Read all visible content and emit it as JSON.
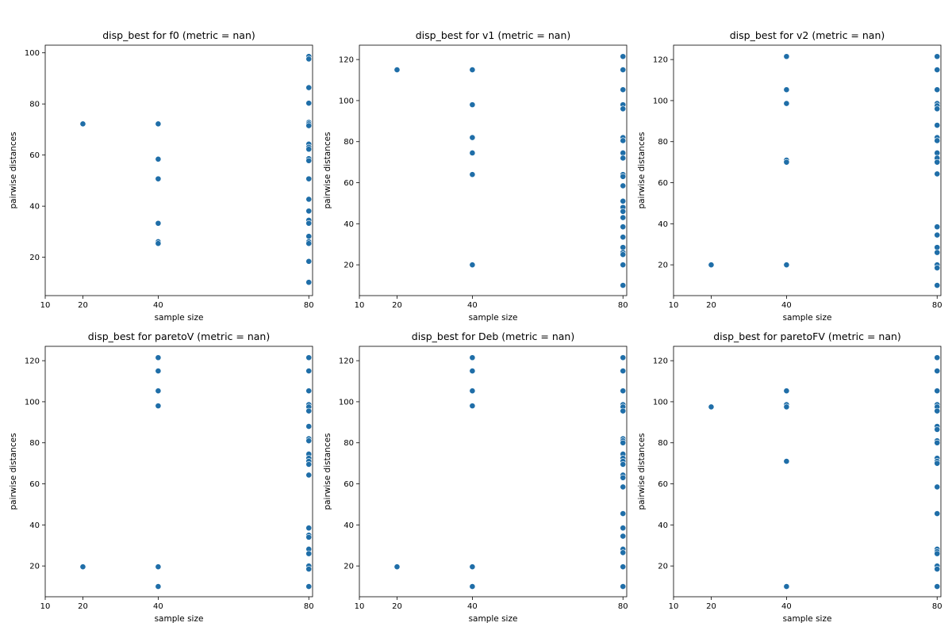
{
  "figure": {
    "width": 1200,
    "height": 800
  },
  "style": {
    "point_color": "#1f6ea8",
    "edge_color": "#ffffff"
  },
  "chart_data": [
    {
      "type": "scatter",
      "title": "disp_best for f0 (metric = nan)",
      "xlabel": "sample size",
      "ylabel": "pairwise distances",
      "xlim": [
        10,
        81
      ],
      "ylim": [
        5,
        103
      ],
      "xticks": [
        10,
        20,
        40,
        80
      ],
      "yticks": [
        20,
        40,
        60,
        80,
        100
      ],
      "points": [
        [
          20,
          72.2
        ],
        [
          40,
          72.2
        ],
        [
          40,
          58.4
        ],
        [
          40,
          50.7
        ],
        [
          40,
          33.3
        ],
        [
          40,
          26.1
        ],
        [
          40,
          25.4
        ],
        [
          80,
          98.6
        ],
        [
          80,
          97.6
        ],
        [
          80,
          86.4
        ],
        [
          80,
          80.3
        ],
        [
          80,
          72.8
        ],
        [
          80,
          72.2
        ],
        [
          80,
          71.5
        ],
        [
          80,
          64.3
        ],
        [
          80,
          63.1
        ],
        [
          80,
          62.3
        ],
        [
          80,
          58.6
        ],
        [
          80,
          57.8
        ],
        [
          80,
          50.7
        ],
        [
          80,
          42.7
        ],
        [
          80,
          38.1
        ],
        [
          80,
          34.5
        ],
        [
          80,
          33.3
        ],
        [
          80,
          28.2
        ],
        [
          80,
          26.1
        ],
        [
          80,
          25.4
        ],
        [
          80,
          18.4
        ],
        [
          80,
          10.2
        ]
      ]
    },
    {
      "type": "scatter",
      "title": "disp_best for v1 (metric = nan)",
      "xlabel": "sample size",
      "ylabel": "pairwise distances",
      "xlim": [
        10,
        81
      ],
      "ylim": [
        5,
        127
      ],
      "xticks": [
        10,
        20,
        40,
        80
      ],
      "yticks": [
        20,
        40,
        60,
        80,
        100,
        120
      ],
      "points": [
        [
          20,
          115
        ],
        [
          40,
          115
        ],
        [
          40,
          98
        ],
        [
          40,
          82
        ],
        [
          40,
          74.5
        ],
        [
          40,
          64
        ],
        [
          40,
          20
        ],
        [
          80,
          121.5
        ],
        [
          80,
          115
        ],
        [
          80,
          105.3
        ],
        [
          80,
          98
        ],
        [
          80,
          96
        ],
        [
          80,
          82
        ],
        [
          80,
          80.5
        ],
        [
          80,
          74.5
        ],
        [
          80,
          72
        ],
        [
          80,
          64
        ],
        [
          80,
          63
        ],
        [
          80,
          58.5
        ],
        [
          80,
          51
        ],
        [
          80,
          48
        ],
        [
          80,
          46
        ],
        [
          80,
          43
        ],
        [
          80,
          38.5
        ],
        [
          80,
          33.5
        ],
        [
          80,
          28.5
        ],
        [
          80,
          26
        ],
        [
          80,
          25
        ],
        [
          80,
          20
        ],
        [
          80,
          10
        ]
      ]
    },
    {
      "type": "scatter",
      "title": "disp_best for v2 (metric = nan)",
      "xlabel": "sample size",
      "ylabel": "pairwise distances",
      "xlim": [
        10,
        81
      ],
      "ylim": [
        5,
        127
      ],
      "xticks": [
        10,
        20,
        40,
        80
      ],
      "yticks": [
        20,
        40,
        60,
        80,
        100,
        120
      ],
      "points": [
        [
          20,
          20
        ],
        [
          40,
          121.5
        ],
        [
          40,
          105.3
        ],
        [
          40,
          98.6
        ],
        [
          40,
          71
        ],
        [
          40,
          70
        ],
        [
          40,
          20
        ],
        [
          80,
          121.5
        ],
        [
          80,
          115
        ],
        [
          80,
          105.3
        ],
        [
          80,
          98.6
        ],
        [
          80,
          97.5
        ],
        [
          80,
          96
        ],
        [
          80,
          88
        ],
        [
          80,
          82
        ],
        [
          80,
          80.5
        ],
        [
          80,
          74.5
        ],
        [
          80,
          72
        ],
        [
          80,
          70
        ],
        [
          80,
          64.3
        ],
        [
          80,
          38.5
        ],
        [
          80,
          34.5
        ],
        [
          80,
          28.5
        ],
        [
          80,
          26
        ],
        [
          80,
          20
        ],
        [
          80,
          18.5
        ],
        [
          80,
          10
        ]
      ]
    },
    {
      "type": "scatter",
      "title": "disp_best for paretoV (metric = nan)",
      "xlabel": "sample size",
      "ylabel": "pairwise distances",
      "xlim": [
        10,
        81
      ],
      "ylim": [
        5,
        127
      ],
      "xticks": [
        10,
        20,
        40,
        80
      ],
      "yticks": [
        20,
        40,
        60,
        80,
        100,
        120
      ],
      "points": [
        [
          20,
          19.6
        ],
        [
          40,
          121.5
        ],
        [
          40,
          115
        ],
        [
          40,
          105.3
        ],
        [
          40,
          98
        ],
        [
          40,
          19.6
        ],
        [
          40,
          10
        ],
        [
          80,
          121.5
        ],
        [
          80,
          115
        ],
        [
          80,
          105.3
        ],
        [
          80,
          98.6
        ],
        [
          80,
          97.5
        ],
        [
          80,
          95.5
        ],
        [
          80,
          88
        ],
        [
          80,
          82
        ],
        [
          80,
          81
        ],
        [
          80,
          74.5
        ],
        [
          80,
          72.5
        ],
        [
          80,
          71
        ],
        [
          80,
          69.5
        ],
        [
          80,
          64.3
        ],
        [
          80,
          38.5
        ],
        [
          80,
          35
        ],
        [
          80,
          34
        ],
        [
          80,
          28.2
        ],
        [
          80,
          26
        ],
        [
          80,
          20
        ],
        [
          80,
          18.5
        ],
        [
          80,
          10
        ]
      ]
    },
    {
      "type": "scatter",
      "title": "disp_best for Deb (metric = nan)",
      "xlabel": "sample size",
      "ylabel": "pairwise distances",
      "xlim": [
        10,
        81
      ],
      "ylim": [
        5,
        127
      ],
      "xticks": [
        10,
        20,
        40,
        80
      ],
      "yticks": [
        20,
        40,
        60,
        80,
        100,
        120
      ],
      "points": [
        [
          20,
          19.6
        ],
        [
          40,
          121.5
        ],
        [
          40,
          115
        ],
        [
          40,
          105.3
        ],
        [
          40,
          98
        ],
        [
          40,
          19.6
        ],
        [
          40,
          10
        ],
        [
          80,
          121.5
        ],
        [
          80,
          115
        ],
        [
          80,
          105.3
        ],
        [
          80,
          98.6
        ],
        [
          80,
          97.5
        ],
        [
          80,
          95.5
        ],
        [
          80,
          82
        ],
        [
          80,
          81
        ],
        [
          80,
          80
        ],
        [
          80,
          74.5
        ],
        [
          80,
          72.5
        ],
        [
          80,
          71
        ],
        [
          80,
          69.5
        ],
        [
          80,
          64.3
        ],
        [
          80,
          63
        ],
        [
          80,
          58.5
        ],
        [
          80,
          45.5
        ],
        [
          80,
          38.5
        ],
        [
          80,
          34.5
        ],
        [
          80,
          28.2
        ],
        [
          80,
          26.5
        ],
        [
          80,
          19.6
        ],
        [
          80,
          10
        ]
      ]
    },
    {
      "type": "scatter",
      "title": "disp_best for paretoFV (metric = nan)",
      "xlabel": "sample size",
      "ylabel": "pairwise distances",
      "xlim": [
        10,
        81
      ],
      "ylim": [
        5,
        127
      ],
      "xticks": [
        10,
        20,
        40,
        80
      ],
      "yticks": [
        20,
        40,
        60,
        80,
        100,
        120
      ],
      "points": [
        [
          20,
          97.5
        ],
        [
          40,
          105.3
        ],
        [
          40,
          98.6
        ],
        [
          40,
          97.5
        ],
        [
          40,
          71
        ],
        [
          40,
          10
        ],
        [
          80,
          121.5
        ],
        [
          80,
          115
        ],
        [
          80,
          105.3
        ],
        [
          80,
          98.6
        ],
        [
          80,
          97.5
        ],
        [
          80,
          95.5
        ],
        [
          80,
          88
        ],
        [
          80,
          86.5
        ],
        [
          80,
          81
        ],
        [
          80,
          80
        ],
        [
          80,
          72.5
        ],
        [
          80,
          71
        ],
        [
          80,
          70
        ],
        [
          80,
          58.5
        ],
        [
          80,
          45.5
        ],
        [
          80,
          28.2
        ],
        [
          80,
          27
        ],
        [
          80,
          26
        ],
        [
          80,
          20
        ],
        [
          80,
          18.5
        ],
        [
          80,
          10
        ]
      ]
    }
  ]
}
